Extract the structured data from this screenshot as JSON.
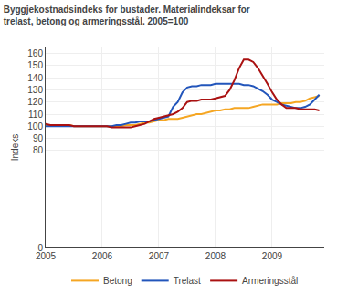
{
  "chart_data": {
    "type": "line",
    "title": "Byggjekostnadsindeks for bustader. Materialindeksar for",
    "subtitle": "trelast, betong og armeringsstål. 2005=100",
    "ylabel": "Indeks",
    "x": [
      2005.0,
      2005.083,
      2005.167,
      2005.25,
      2005.333,
      2005.417,
      2005.5,
      2005.583,
      2005.667,
      2005.75,
      2005.833,
      2005.917,
      2006.0,
      2006.083,
      2006.167,
      2006.25,
      2006.333,
      2006.417,
      2006.5,
      2006.583,
      2006.667,
      2006.75,
      2006.833,
      2006.917,
      2007.0,
      2007.083,
      2007.167,
      2007.25,
      2007.333,
      2007.417,
      2007.5,
      2007.583,
      2007.667,
      2007.75,
      2007.833,
      2007.917,
      2008.0,
      2008.083,
      2008.167,
      2008.25,
      2008.333,
      2008.417,
      2008.5,
      2008.583,
      2008.667,
      2008.75,
      2008.833,
      2008.917,
      2009.0,
      2009.083,
      2009.167,
      2009.25,
      2009.333,
      2009.417,
      2009.5,
      2009.583,
      2009.667,
      2009.75,
      2009.833
    ],
    "series": [
      {
        "name": "Betong",
        "color": "#f5a623",
        "values": [
          101,
          101,
          101,
          101,
          101,
          101,
          100,
          100,
          100,
          100,
          100,
          100,
          100,
          100,
          100,
          100,
          100,
          101,
          101,
          101,
          102,
          103,
          103,
          104,
          105,
          105,
          106,
          106,
          106,
          107,
          108,
          109,
          110,
          110,
          111,
          112,
          113,
          113,
          114,
          114,
          115,
          115,
          115,
          115,
          116,
          117,
          118,
          118,
          118,
          118,
          119,
          119,
          119,
          120,
          120,
          121,
          123,
          124,
          125
        ]
      },
      {
        "name": "Trelast",
        "color": "#2255bb",
        "values": [
          100,
          100,
          100,
          100,
          100,
          100,
          100,
          100,
          100,
          100,
          100,
          100,
          100,
          100,
          100,
          101,
          101,
          102,
          103,
          103,
          104,
          104,
          104,
          105,
          106,
          107,
          108,
          116,
          120,
          128,
          132,
          133,
          133,
          134,
          134,
          134,
          135,
          135,
          135,
          135,
          135,
          135,
          134,
          134,
          133,
          131,
          129,
          126,
          122,
          120,
          118,
          117,
          116,
          115,
          115,
          116,
          118,
          122,
          126
        ]
      },
      {
        "name": "Armeringsstål",
        "color": "#aa1111",
        "values": [
          102,
          101,
          101,
          101,
          101,
          101,
          100,
          100,
          100,
          100,
          100,
          100,
          100,
          100,
          99,
          99,
          99,
          99,
          99,
          100,
          101,
          102,
          104,
          106,
          107,
          108,
          109,
          110,
          112,
          115,
          120,
          121,
          121,
          122,
          122,
          122,
          123,
          124,
          125,
          130,
          138,
          148,
          155,
          155,
          153,
          148,
          142,
          135,
          128,
          122,
          118,
          115,
          115,
          115,
          114,
          114,
          114,
          114,
          113
        ]
      }
    ],
    "xlim": [
      2005.0,
      2009.92
    ],
    "xticks": [
      2005,
      2006,
      2007,
      2008,
      2009
    ],
    "ylim": [
      0,
      165
    ],
    "yticks": [
      0,
      80,
      90,
      100,
      110,
      120,
      130,
      140,
      150,
      160
    ],
    "grid": true,
    "legend": "bottom"
  }
}
